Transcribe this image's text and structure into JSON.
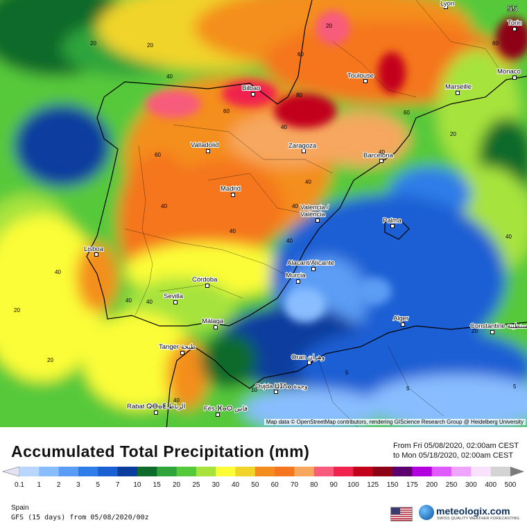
{
  "map": {
    "badge": "55",
    "attribution": "Map data © OpenStreetMap contributors, rendering GIScience Research Group @ Heidelberg University",
    "cities": [
      {
        "name": "Lyon"
      },
      {
        "name": "Torin"
      },
      {
        "name": "Monaco"
      },
      {
        "name": "Toulouse"
      },
      {
        "name": "Marseille"
      },
      {
        "name": "Bilbao"
      },
      {
        "name": "Valladolid"
      },
      {
        "name": "Zaragoza"
      },
      {
        "name": "Barcelona"
      },
      {
        "name": "Madrid"
      },
      {
        "name": "Valencia / València"
      },
      {
        "name": "Palma"
      },
      {
        "name": "Lisboa"
      },
      {
        "name": "Alacant/Alicante"
      },
      {
        "name": "Murcia"
      },
      {
        "name": "Córdoba"
      },
      {
        "name": "Sevilla"
      },
      {
        "name": "Málaga"
      },
      {
        "name": "Tanger طنجة"
      },
      {
        "name": "Alger"
      },
      {
        "name": "Constantine قسنطينة"
      },
      {
        "name": "Oran وهران"
      },
      {
        "name": "Oujda ⵡⵊⴷⴰ وجدة"
      },
      {
        "name": "Rabat ⵕⴱⴰⵟ الرباط"
      },
      {
        "name": "Fès ⴼⴰⵙ فاس"
      }
    ],
    "contour_labels": [
      "20",
      "20",
      "40",
      "60",
      "80",
      "60",
      "60",
      "40",
      "40",
      "20",
      "40",
      "40",
      "40",
      "40",
      "60",
      "40",
      "40",
      "40",
      "40",
      "20",
      "40",
      "20",
      "40",
      "20",
      "5",
      "10",
      "5",
      "5",
      "20",
      "60"
    ]
  },
  "title": "Accumulated Total Precipitation (mm)",
  "period": {
    "from": "From Fri 05/08/2020, 02:00am CEST",
    "to": "to Mon 05/18/2020, 02:00am CEST"
  },
  "legend": {
    "values": [
      "0.1",
      "1",
      "2",
      "3",
      "5",
      "7",
      "10",
      "15",
      "20",
      "25",
      "30",
      "40",
      "50",
      "60",
      "70",
      "80",
      "90",
      "100",
      "125",
      "150",
      "175",
      "200",
      "250",
      "300",
      "400",
      "500"
    ],
    "colors": [
      "#e2e3f3",
      "#b8d6ff",
      "#88bdff",
      "#5b9df5",
      "#2f7de8",
      "#1b5fd4",
      "#0c3d9e",
      "#0f6b2c",
      "#2ea43a",
      "#56c93a",
      "#a7e33c",
      "#fbfd37",
      "#f1d42a",
      "#f48e1e",
      "#f5761e",
      "#f7a75e",
      "#f85b7c",
      "#f0224e",
      "#c3001b",
      "#8e0013",
      "#5c006e",
      "#b400e0",
      "#e05bff",
      "#efa4ff",
      "#f9e2ff",
      "#d3d3d3"
    ]
  },
  "footer": {
    "region": "Spain",
    "model": "GFS (15 days) from 05/08/2020/00z",
    "logo_name": "meteologix.com",
    "logo_tagline": "SWISS QUALITY WEATHER FORECASTING"
  }
}
